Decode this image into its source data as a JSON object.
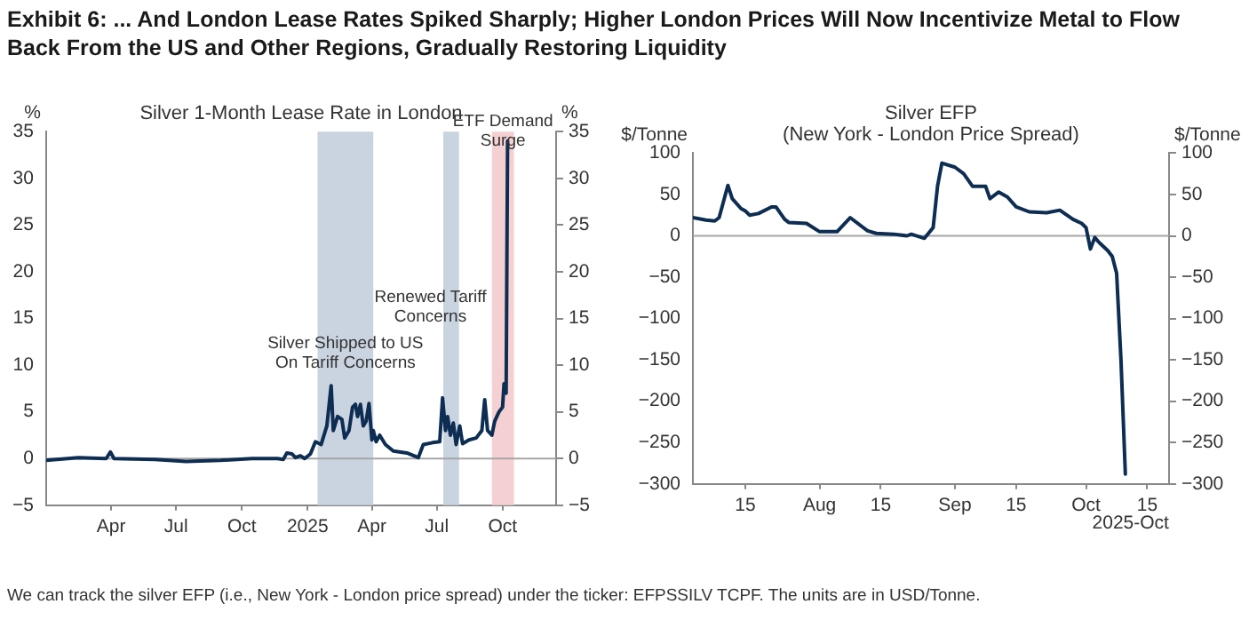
{
  "chart_data": [
    {
      "type": "line",
      "title": "Silver 1-Month Lease Rate in London",
      "ylabel": "%",
      "y2label": "%",
      "annotations": [
        "Exhibit 6: ... And London Lease Rates Spiked Sharply; Higher London Prices Will Now Incentivize Metal to Flow Back From the US and Other Regions, Gradually Restoring Liquidity"
      ],
      "xlim": [
        "2024-01-01",
        "2025-12-15"
      ],
      "xticks": [
        {
          "value": "2024-04-01",
          "label": "Apr"
        },
        {
          "value": "2024-07-01",
          "label": "Jul"
        },
        {
          "value": "2024-10-01",
          "label": "Oct"
        },
        {
          "value": "2025-01-01",
          "label": "2025"
        },
        {
          "value": "2025-04-01",
          "label": "Apr"
        },
        {
          "value": "2025-07-01",
          "label": "Jul"
        },
        {
          "value": "2025-10-01",
          "label": "Oct"
        }
      ],
      "ylim": [
        -5,
        35
      ],
      "yticks": [
        {
          "value": -5,
          "label": "−5"
        },
        0,
        5,
        10,
        15,
        20,
        25,
        30,
        35
      ],
      "y2lim": [
        -5,
        35
      ],
      "y2ticks": [
        {
          "value": -5,
          "label": "−5"
        },
        0,
        5,
        10,
        15,
        20,
        25,
        30,
        35
      ],
      "grid": false,
      "legend": false,
      "marker": "none",
      "line_style": "solid",
      "ref_lines": [
        {
          "axis": "y",
          "value": 0,
          "color": "#a6a6a6"
        }
      ],
      "bands": [
        {
          "axis": "x",
          "from": "2025-01-15",
          "to": "2025-04-03",
          "label": "Silver Shipped to US\nOn Tariff Concerns",
          "color": "#c9d4e0"
        },
        {
          "axis": "x",
          "from": "2025-07-10",
          "to": "2025-08-01",
          "label": "Renewed Tariff\nConcerns",
          "color": "#c9d4e0"
        },
        {
          "axis": "x",
          "from": "2025-09-16",
          "to": "2025-10-17",
          "label": "ETF Demand\nSurge",
          "color": "#f4d0d3"
        }
      ],
      "series": [
        {
          "color": "#0d2d52",
          "x": [
            "2024-01-01",
            "2024-02-15",
            "2024-03-25",
            "2024-03-31",
            "2024-04-05",
            "2024-06-01",
            "2024-07-15",
            "2024-09-01",
            "2024-10-15",
            "2024-11-20",
            "2024-11-28",
            "2024-12-03",
            "2024-12-10",
            "2024-12-15",
            "2024-12-22",
            "2024-12-28",
            "2025-01-05",
            "2025-01-12",
            "2025-01-20",
            "2025-01-28",
            "2025-02-03",
            "2025-02-06",
            "2025-02-12",
            "2025-02-18",
            "2025-02-22",
            "2025-02-28",
            "2025-03-05",
            "2025-03-09",
            "2025-03-12",
            "2025-03-16",
            "2025-03-20",
            "2025-03-24",
            "2025-03-28",
            "2025-04-01",
            "2025-04-03",
            "2025-04-07",
            "2025-04-12",
            "2025-04-20",
            "2025-05-01",
            "2025-05-20",
            "2025-06-05",
            "2025-06-12",
            "2025-06-25",
            "2025-07-05",
            "2025-07-09",
            "2025-07-13",
            "2025-07-16",
            "2025-07-20",
            "2025-07-24",
            "2025-07-28",
            "2025-08-02",
            "2025-08-06",
            "2025-08-15",
            "2025-08-25",
            "2025-09-02",
            "2025-09-06",
            "2025-09-10",
            "2025-09-16",
            "2025-09-20",
            "2025-09-26",
            "2025-10-01",
            "2025-10-03",
            "2025-10-06",
            "2025-10-08"
          ],
          "values": [
            -0.2,
            0.1,
            0.0,
            0.7,
            0.0,
            -0.1,
            -0.3,
            -0.2,
            0.0,
            0.0,
            -0.1,
            0.6,
            0.5,
            0.1,
            0.3,
            0.0,
            0.5,
            1.8,
            1.5,
            3.5,
            7.8,
            3.0,
            4.5,
            4.2,
            2.2,
            3.0,
            5.5,
            5.8,
            4.5,
            5.8,
            3.5,
            4.0,
            5.9,
            2.0,
            3.0,
            1.8,
            2.5,
            1.5,
            0.8,
            0.6,
            0.1,
            1.5,
            1.7,
            1.8,
            6.5,
            3.0,
            4.5,
            2.5,
            3.8,
            1.5,
            3.5,
            1.6,
            2.0,
            2.2,
            3.0,
            6.3,
            3.0,
            2.5,
            4.0,
            5.0,
            5.5,
            8.0,
            7.0,
            34.0
          ]
        }
      ]
    },
    {
      "type": "line",
      "title": "Silver EFP\n(New York - London Price Spread)",
      "ylabel": "$/Tonne",
      "y2label": "$/Tonne",
      "xlabel": "2025-Oct",
      "annotations": [
        "We can track the silver EFP (i.e., New York - London price spread) under the ticker: EFPSSILV TCPF. The units are in USD/Tonne."
      ],
      "xlim": [
        "2025-07-03",
        "2025-10-20"
      ],
      "xticks": [
        {
          "value": "2025-07-15",
          "label": "15"
        },
        {
          "value": "2025-08-01",
          "label": "Aug"
        },
        {
          "value": "2025-08-15",
          "label": "15"
        },
        {
          "value": "2025-09-01",
          "label": "Sep"
        },
        {
          "value": "2025-09-15",
          "label": "15"
        },
        {
          "value": "2025-10-01",
          "label": "Oct"
        },
        {
          "value": "2025-10-15",
          "label": "15"
        }
      ],
      "ylim": [
        -300,
        100
      ],
      "yticks": [
        {
          "value": -300,
          "label": "−300"
        },
        {
          "value": -250,
          "label": "−250"
        },
        {
          "value": -200,
          "label": "−200"
        },
        {
          "value": -150,
          "label": "−150"
        },
        {
          "value": -100,
          "label": "−100"
        },
        {
          "value": -50,
          "label": "−50"
        },
        0,
        50,
        100
      ],
      "y2lim": [
        -300,
        100
      ],
      "y2ticks": [
        {
          "value": -300,
          "label": "−300"
        },
        {
          "value": -250,
          "label": "−250"
        },
        {
          "value": -200,
          "label": "−200"
        },
        {
          "value": -150,
          "label": "−150"
        },
        {
          "value": -100,
          "label": "−100"
        },
        {
          "value": -50,
          "label": "−50"
        },
        0,
        50,
        100
      ],
      "grid": false,
      "legend": false,
      "marker": "none",
      "line_style": "solid",
      "ref_lines": [
        {
          "axis": "y",
          "value": 0,
          "color": "#a6a6a6"
        }
      ],
      "series": [
        {
          "color": "#0d2d52",
          "x": [
            "2025-07-03",
            "2025-07-06",
            "2025-07-08",
            "2025-07-09",
            "2025-07-11",
            "2025-07-12",
            "2025-07-14",
            "2025-07-15",
            "2025-07-16",
            "2025-07-18",
            "2025-07-21",
            "2025-07-22",
            "2025-07-24",
            "2025-07-25",
            "2025-07-29",
            "2025-08-01",
            "2025-08-05",
            "2025-08-08",
            "2025-08-12",
            "2025-08-14",
            "2025-08-18",
            "2025-08-21",
            "2025-08-22",
            "2025-08-25",
            "2025-08-27",
            "2025-08-28",
            "2025-08-29",
            "2025-09-01",
            "2025-09-03",
            "2025-09-05",
            "2025-09-08",
            "2025-09-09",
            "2025-09-11",
            "2025-09-13",
            "2025-09-15",
            "2025-09-18",
            "2025-09-22",
            "2025-09-25",
            "2025-09-28",
            "2025-09-30",
            "2025-10-01",
            "2025-10-02",
            "2025-10-03",
            "2025-10-04",
            "2025-10-06",
            "2025-10-07",
            "2025-10-08",
            "2025-10-09",
            "2025-10-10"
          ],
          "values": [
            22,
            19,
            18,
            22,
            61,
            45,
            33,
            30,
            25,
            27,
            35,
            35,
            20,
            16,
            15,
            5,
            5,
            22,
            6,
            3,
            2,
            0,
            2,
            -3,
            10,
            60,
            88,
            83,
            75,
            60,
            60,
            45,
            53,
            47,
            35,
            29,
            28,
            31,
            20,
            15,
            10,
            -16,
            -2,
            -8,
            -18,
            -25,
            -45,
            -150,
            -288
          ]
        }
      ]
    }
  ]
}
